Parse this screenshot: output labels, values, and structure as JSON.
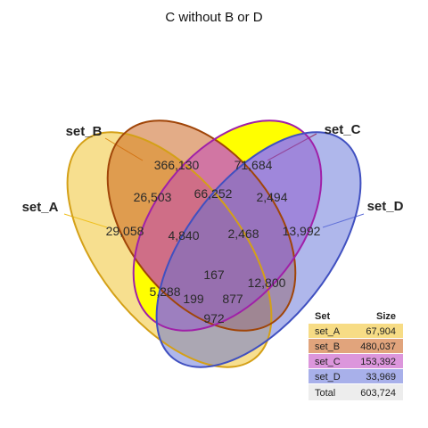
{
  "title": "C without B or D",
  "sets": [
    {
      "name": "set_A",
      "size": "67,904",
      "fill": "#F0C020",
      "stroke": "#D4A017"
    },
    {
      "name": "set_B",
      "size": "480,037",
      "fill": "#C85A10",
      "stroke": "#A04508"
    },
    {
      "name": "set_C",
      "size": "153,392",
      "fill": "#C040C0",
      "stroke": "#A020A8"
    },
    {
      "name": "set_D",
      "size": "33,969",
      "fill": "#6070D8",
      "stroke": "#4050C0"
    }
  ],
  "highlight_color": "#FFFF00",
  "regions": [
    {
      "label": "29,058"
    },
    {
      "label": "366,130"
    },
    {
      "label": "71,684"
    },
    {
      "label": "13,992"
    },
    {
      "label": "26,503"
    },
    {
      "label": "66,252"
    },
    {
      "label": "2,494"
    },
    {
      "label": "4,840"
    },
    {
      "label": "2,468"
    },
    {
      "label": "167"
    },
    {
      "label": "5,288"
    },
    {
      "label": "12,800"
    },
    {
      "label": "199"
    },
    {
      "label": "877"
    },
    {
      "label": "972"
    }
  ],
  "table": {
    "header_set": "Set",
    "header_size": "Size",
    "total_label": "Total",
    "total_value": "603,724"
  }
}
